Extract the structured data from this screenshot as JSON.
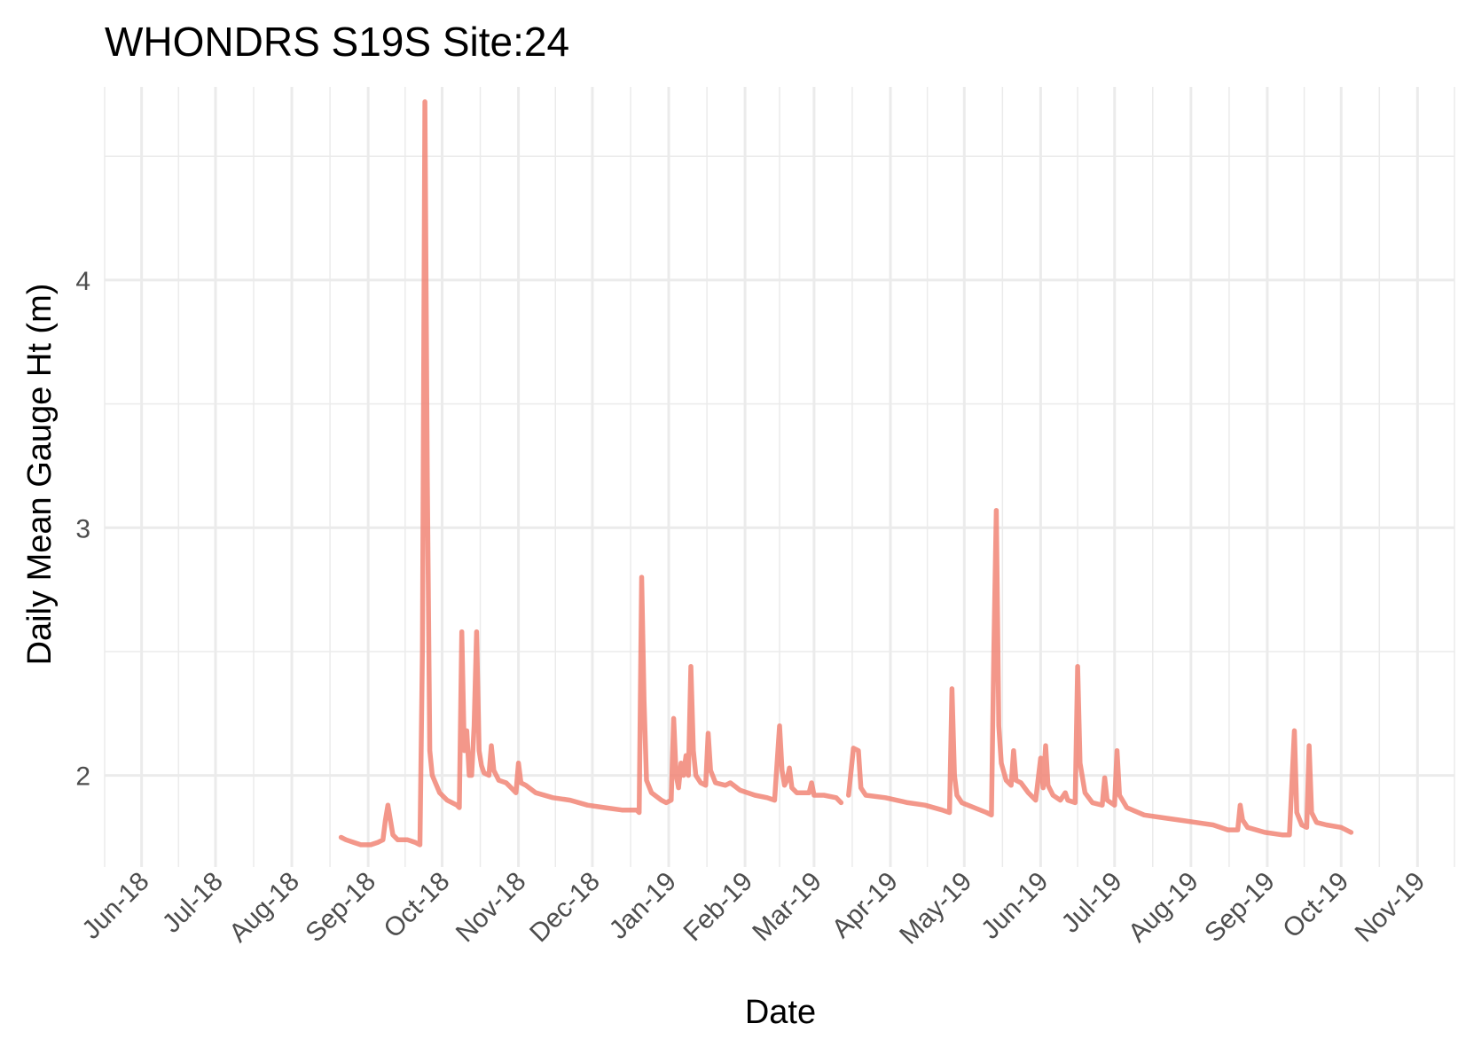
{
  "chart_data": {
    "type": "line",
    "title": "WHONDRS S19S Site:24",
    "xlabel": "Date",
    "ylabel": "Daily Mean Gauge Ht (m)",
    "x_ticks": [
      "Jun-18",
      "Jul-18",
      "Aug-18",
      "Sep-18",
      "Oct-18",
      "Nov-18",
      "Dec-18",
      "Jan-19",
      "Feb-19",
      "Mar-19",
      "Apr-19",
      "May-19",
      "Jun-19",
      "Jul-19",
      "Aug-19",
      "Sep-19",
      "Oct-19",
      "Nov-19"
    ],
    "y_ticks": [
      2,
      3,
      4
    ],
    "xlim": [
      "2018-05-17",
      "2019-11-16"
    ],
    "ylim": [
      1.63,
      4.78
    ],
    "grid": true,
    "colors": {
      "series": "#F08070",
      "grid": "#EBEBEB",
      "tick_text": "#4D4D4D"
    },
    "series": [
      {
        "segments": [
          [
            [
              "2018-08-21",
              1.75
            ],
            [
              "2018-08-23",
              1.74
            ],
            [
              "2018-08-26",
              1.73
            ],
            [
              "2018-08-29",
              1.72
            ],
            [
              "2018-09-02",
              1.72
            ],
            [
              "2018-09-05",
              1.73
            ],
            [
              "2018-09-07",
              1.74
            ],
            [
              "2018-09-08",
              1.82
            ],
            [
              "2018-09-09",
              1.88
            ],
            [
              "2018-09-10",
              1.82
            ],
            [
              "2018-09-11",
              1.76
            ],
            [
              "2018-09-13",
              1.74
            ],
            [
              "2018-09-17",
              1.74
            ],
            [
              "2018-09-20",
              1.73
            ],
            [
              "2018-09-22",
              1.72
            ],
            [
              "2018-09-23",
              2.5
            ],
            [
              "2018-09-24",
              4.72
            ],
            [
              "2018-09-25",
              3.2
            ],
            [
              "2018-09-26",
              2.1
            ],
            [
              "2018-09-27",
              2.0
            ],
            [
              "2018-09-30",
              1.93
            ],
            [
              "2018-10-03",
              1.9
            ],
            [
              "2018-10-07",
              1.88
            ],
            [
              "2018-10-08",
              1.87
            ],
            [
              "2018-10-09",
              2.58
            ],
            [
              "2018-10-10",
              2.1
            ],
            [
              "2018-10-11",
              2.18
            ],
            [
              "2018-10-12",
              2.0
            ],
            [
              "2018-10-13",
              2.0
            ],
            [
              "2018-10-14",
              2.2
            ],
            [
              "2018-10-15",
              2.58
            ],
            [
              "2018-10-16",
              2.1
            ],
            [
              "2018-10-17",
              2.04
            ],
            [
              "2018-10-18",
              2.01
            ],
            [
              "2018-10-20",
              2.0
            ],
            [
              "2018-10-21",
              2.12
            ],
            [
              "2018-10-22",
              2.02
            ],
            [
              "2018-10-24",
              1.98
            ],
            [
              "2018-10-27",
              1.97
            ],
            [
              "2018-10-29",
              1.95
            ],
            [
              "2018-10-31",
              1.93
            ],
            [
              "2018-11-01",
              2.05
            ],
            [
              "2018-11-02",
              1.97
            ],
            [
              "2018-11-04",
              1.96
            ],
            [
              "2018-11-08",
              1.93
            ],
            [
              "2018-11-15",
              1.91
            ],
            [
              "2018-11-22",
              1.9
            ],
            [
              "2018-11-29",
              1.88
            ],
            [
              "2018-12-06",
              1.87
            ],
            [
              "2018-12-13",
              1.86
            ],
            [
              "2018-12-19",
              1.86
            ],
            [
              "2018-12-20",
              1.85
            ],
            [
              "2018-12-21",
              2.8
            ],
            [
              "2018-12-22",
              2.3
            ],
            [
              "2018-12-23",
              1.98
            ],
            [
              "2018-12-25",
              1.93
            ],
            [
              "2018-12-29",
              1.9
            ],
            [
              "2018-12-31",
              1.89
            ],
            [
              "2019-01-02",
              1.9
            ],
            [
              "2019-01-03",
              2.23
            ],
            [
              "2019-01-04",
              2.0
            ],
            [
              "2019-01-05",
              1.95
            ],
            [
              "2019-01-06",
              2.05
            ],
            [
              "2019-01-07",
              2.0
            ],
            [
              "2019-01-08",
              2.08
            ],
            [
              "2019-01-09",
              2.0
            ],
            [
              "2019-01-10",
              2.44
            ],
            [
              "2019-01-11",
              2.1
            ],
            [
              "2019-01-12",
              2.0
            ],
            [
              "2019-01-14",
              1.97
            ],
            [
              "2019-01-16",
              1.96
            ],
            [
              "2019-01-17",
              2.17
            ],
            [
              "2019-01-18",
              2.02
            ],
            [
              "2019-01-20",
              1.97
            ],
            [
              "2019-01-24",
              1.96
            ],
            [
              "2019-01-26",
              1.97
            ],
            [
              "2019-01-30",
              1.94
            ],
            [
              "2019-02-05",
              1.92
            ],
            [
              "2019-02-10",
              1.91
            ],
            [
              "2019-02-13",
              1.9
            ],
            [
              "2019-02-15",
              2.2
            ],
            [
              "2019-02-16",
              2.02
            ],
            [
              "2019-02-17",
              1.96
            ],
            [
              "2019-02-18",
              1.98
            ],
            [
              "2019-02-19",
              2.03
            ],
            [
              "2019-02-20",
              1.95
            ],
            [
              "2019-02-22",
              1.93
            ],
            [
              "2019-02-27",
              1.93
            ],
            [
              "2019-02-28",
              1.97
            ],
            [
              "2019-03-01",
              1.92
            ],
            [
              "2019-03-05",
              1.92
            ],
            [
              "2019-03-10",
              1.91
            ],
            [
              "2019-03-12",
              1.89
            ]
          ],
          [
            [
              "2019-03-15",
              1.92
            ],
            [
              "2019-03-17",
              2.11
            ],
            [
              "2019-03-19",
              2.1
            ],
            [
              "2019-03-20",
              1.95
            ],
            [
              "2019-03-22",
              1.92
            ],
            [
              "2019-03-30",
              1.91
            ],
            [
              "2019-04-08",
              1.89
            ],
            [
              "2019-04-15",
              1.88
            ],
            [
              "2019-04-22",
              1.86
            ],
            [
              "2019-04-25",
              1.85
            ],
            [
              "2019-04-26",
              2.35
            ],
            [
              "2019-04-27",
              2.0
            ],
            [
              "2019-04-28",
              1.92
            ],
            [
              "2019-04-30",
              1.89
            ],
            [
              "2019-05-05",
              1.87
            ],
            [
              "2019-05-10",
              1.85
            ],
            [
              "2019-05-12",
              1.84
            ],
            [
              "2019-05-13",
              2.5
            ],
            [
              "2019-05-14",
              3.07
            ],
            [
              "2019-05-15",
              2.2
            ],
            [
              "2019-05-16",
              2.05
            ],
            [
              "2019-05-18",
              1.98
            ],
            [
              "2019-05-20",
              1.96
            ],
            [
              "2019-05-21",
              2.1
            ],
            [
              "2019-05-22",
              1.98
            ],
            [
              "2019-05-24",
              1.97
            ],
            [
              "2019-05-27",
              1.93
            ],
            [
              "2019-05-30",
              1.9
            ],
            [
              "2019-06-01",
              2.07
            ],
            [
              "2019-06-02",
              1.95
            ],
            [
              "2019-06-03",
              2.12
            ],
            [
              "2019-06-04",
              1.96
            ],
            [
              "2019-06-06",
              1.92
            ],
            [
              "2019-06-09",
              1.9
            ],
            [
              "2019-06-11",
              1.93
            ],
            [
              "2019-06-12",
              1.9
            ],
            [
              "2019-06-15",
              1.89
            ],
            [
              "2019-06-16",
              2.44
            ],
            [
              "2019-06-17",
              2.05
            ],
            [
              "2019-06-19",
              1.93
            ],
            [
              "2019-06-22",
              1.89
            ],
            [
              "2019-06-26",
              1.88
            ],
            [
              "2019-06-27",
              1.99
            ],
            [
              "2019-06-28",
              1.9
            ],
            [
              "2019-07-01",
              1.88
            ],
            [
              "2019-07-02",
              2.1
            ],
            [
              "2019-07-03",
              1.92
            ],
            [
              "2019-07-06",
              1.87
            ],
            [
              "2019-07-13",
              1.84
            ],
            [
              "2019-07-20",
              1.83
            ],
            [
              "2019-07-27",
              1.82
            ],
            [
              "2019-08-03",
              1.81
            ],
            [
              "2019-08-10",
              1.8
            ],
            [
              "2019-08-16",
              1.78
            ],
            [
              "2019-08-20",
              1.78
            ],
            [
              "2019-08-21",
              1.88
            ],
            [
              "2019-08-22",
              1.82
            ],
            [
              "2019-08-24",
              1.79
            ],
            [
              "2019-08-31",
              1.77
            ],
            [
              "2019-09-07",
              1.76
            ],
            [
              "2019-09-10",
              1.76
            ],
            [
              "2019-09-12",
              2.18
            ],
            [
              "2019-09-13",
              1.85
            ],
            [
              "2019-09-15",
              1.8
            ],
            [
              "2019-09-17",
              1.79
            ],
            [
              "2019-09-18",
              2.12
            ],
            [
              "2019-09-19",
              1.85
            ],
            [
              "2019-09-21",
              1.81
            ],
            [
              "2019-09-25",
              1.8
            ],
            [
              "2019-10-01",
              1.79
            ],
            [
              "2019-10-05",
              1.77
            ]
          ]
        ]
      }
    ]
  }
}
